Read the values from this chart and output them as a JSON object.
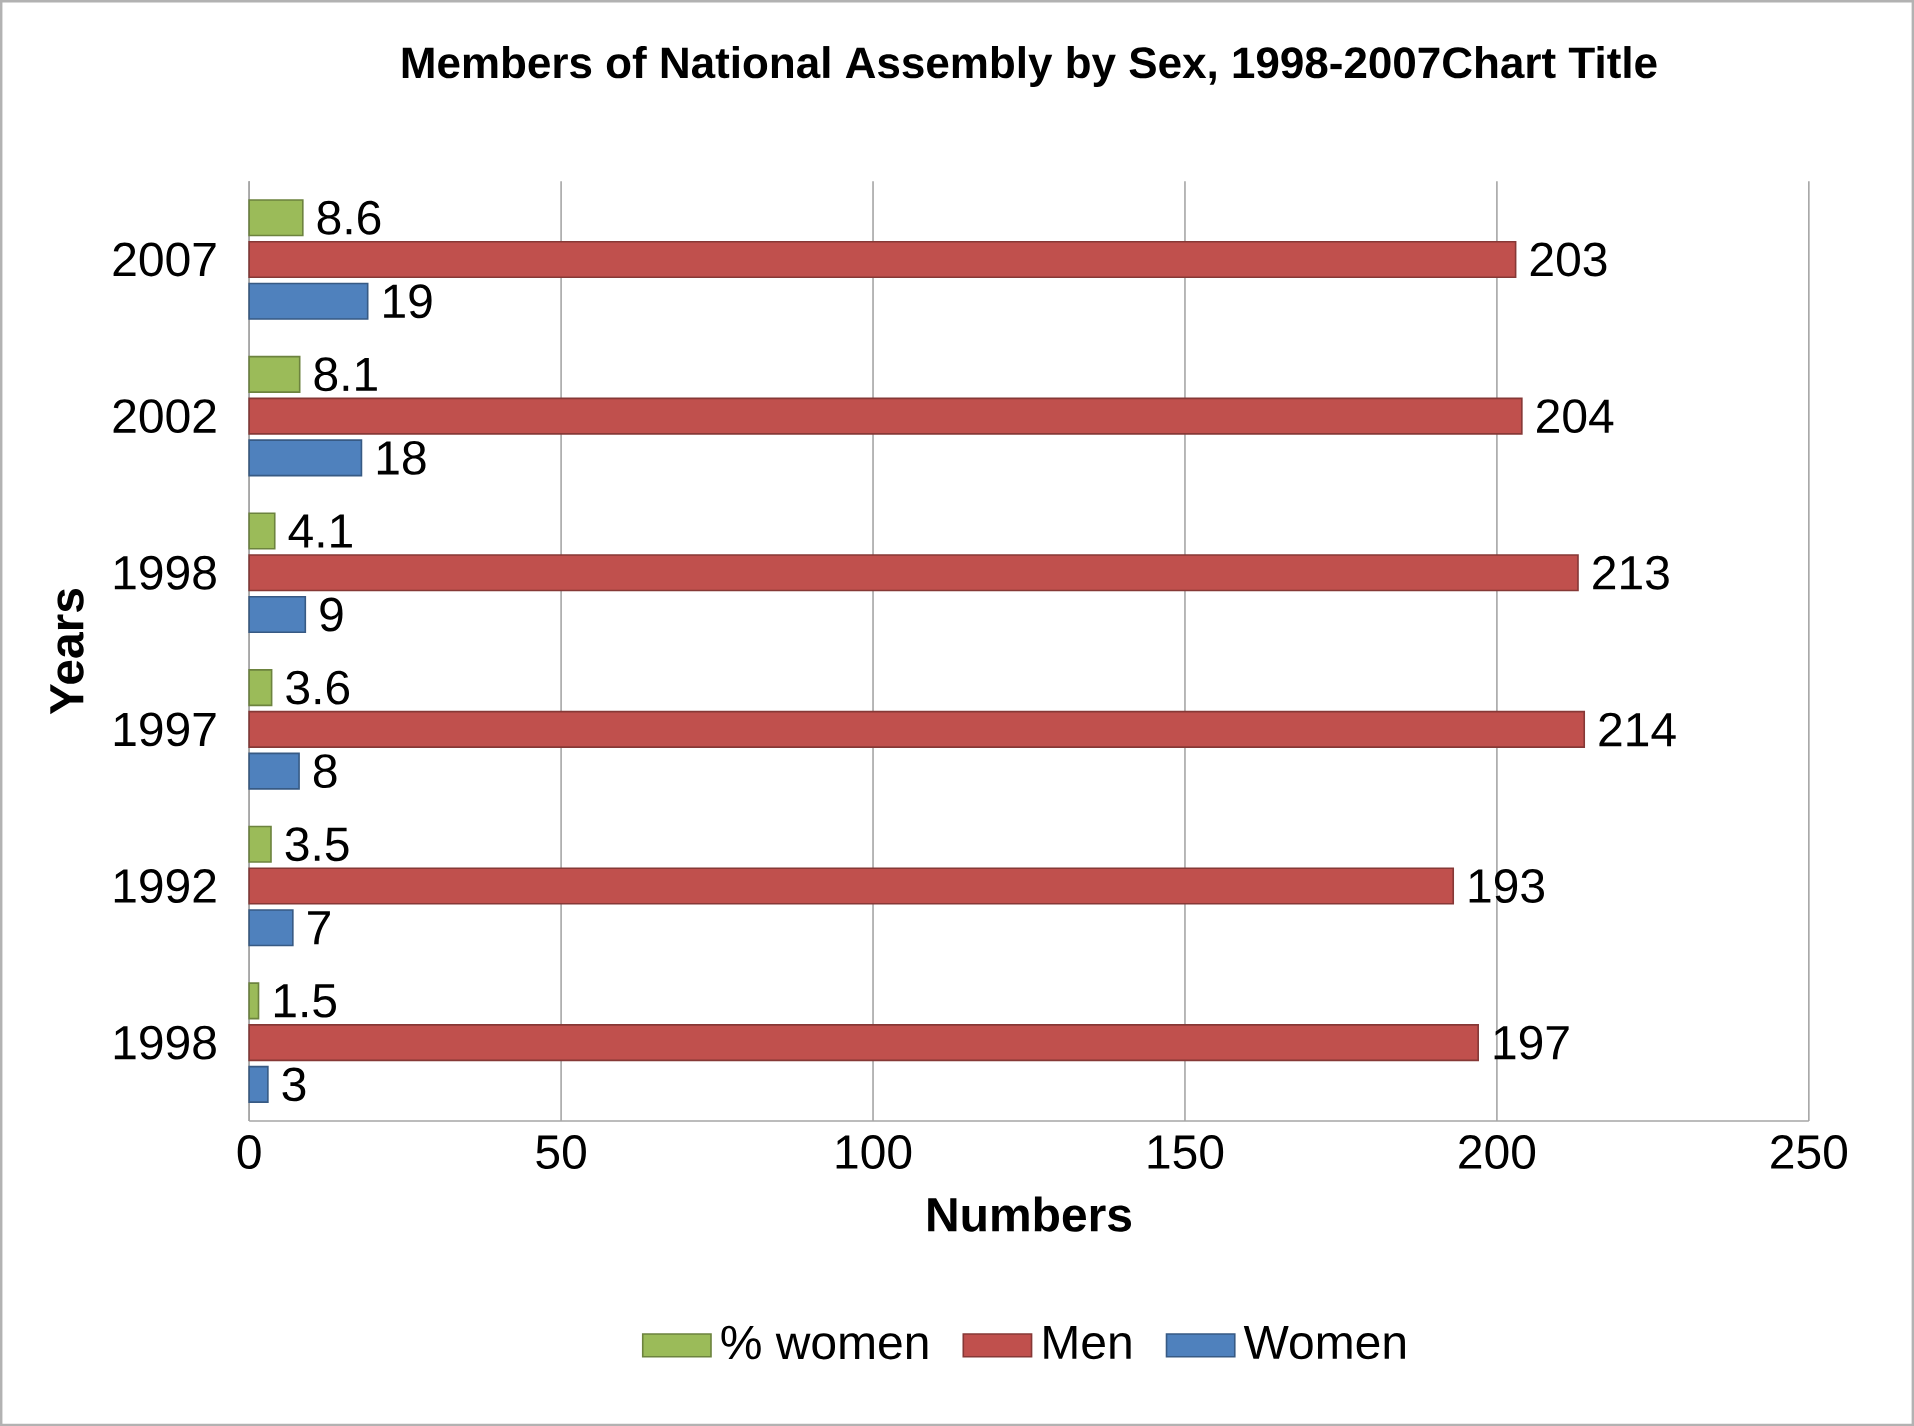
{
  "chart_data": {
    "type": "bar",
    "orientation": "horizontal",
    "title": "Members of National Assembly  by Sex, 1998-2007Chart Title",
    "xlabel": "Numbers",
    "ylabel": "Years",
    "categories": [
      "2007",
      "2002",
      "1998",
      "1997",
      "1992",
      "1998"
    ],
    "series": [
      {
        "name": "% women",
        "color": "#9bbb59",
        "values": [
          8.6,
          8.1,
          4.1,
          3.6,
          3.5,
          1.5
        ]
      },
      {
        "name": "Men",
        "color": "#c0504d",
        "values": [
          203,
          204,
          213,
          214,
          193,
          197
        ]
      },
      {
        "name": "Women",
        "color": "#4f81bd",
        "values": [
          19,
          18,
          9,
          8,
          7,
          3
        ]
      }
    ],
    "xlim": [
      0,
      250
    ],
    "xticks": [
      0,
      50,
      100,
      150,
      200,
      250
    ],
    "grid": "x",
    "legend": "bottom",
    "data_labels": true
  }
}
